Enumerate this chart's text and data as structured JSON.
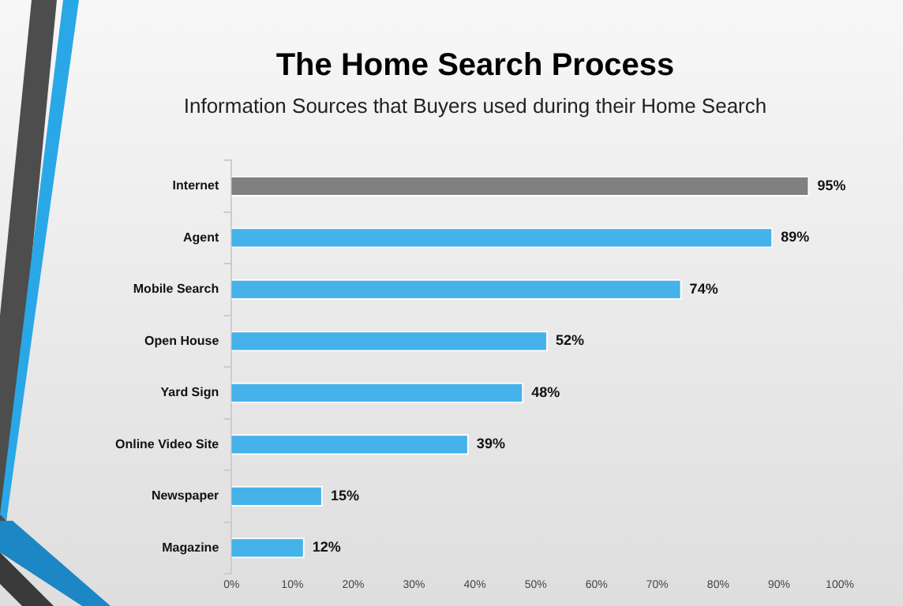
{
  "chart_data": {
    "type": "bar",
    "orientation": "horizontal",
    "title": "The Home Search Process",
    "subtitle": "Information Sources that Buyers used during their Home Search",
    "categories": [
      "Internet",
      "Agent",
      "Mobile Search",
      "Open House",
      "Yard Sign",
      "Online Video Site",
      "Newspaper",
      "Magazine"
    ],
    "values": [
      95,
      89,
      74,
      52,
      48,
      39,
      15,
      12
    ],
    "colors": [
      "#808080",
      "#45b2ea",
      "#45b2ea",
      "#45b2ea",
      "#45b2ea",
      "#45b2ea",
      "#45b2ea",
      "#45b2ea"
    ],
    "value_labels": [
      "95%",
      "89%",
      "74%",
      "52%",
      "48%",
      "39%",
      "15%",
      "12%"
    ],
    "xlim": [
      0,
      100
    ],
    "xticks": [
      {
        "value": 0,
        "label": "0%"
      },
      {
        "value": 10,
        "label": "10%"
      },
      {
        "value": 20,
        "label": "20%"
      },
      {
        "value": 30,
        "label": "30%"
      },
      {
        "value": 40,
        "label": "40%"
      },
      {
        "value": 50,
        "label": "50%"
      },
      {
        "value": 60,
        "label": "60%"
      },
      {
        "value": 70,
        "label": "70%"
      },
      {
        "value": 80,
        "label": "80%"
      },
      {
        "value": 90,
        "label": "90%"
      },
      {
        "value": 100,
        "label": "100%"
      }
    ],
    "grid": false,
    "legend": false
  }
}
